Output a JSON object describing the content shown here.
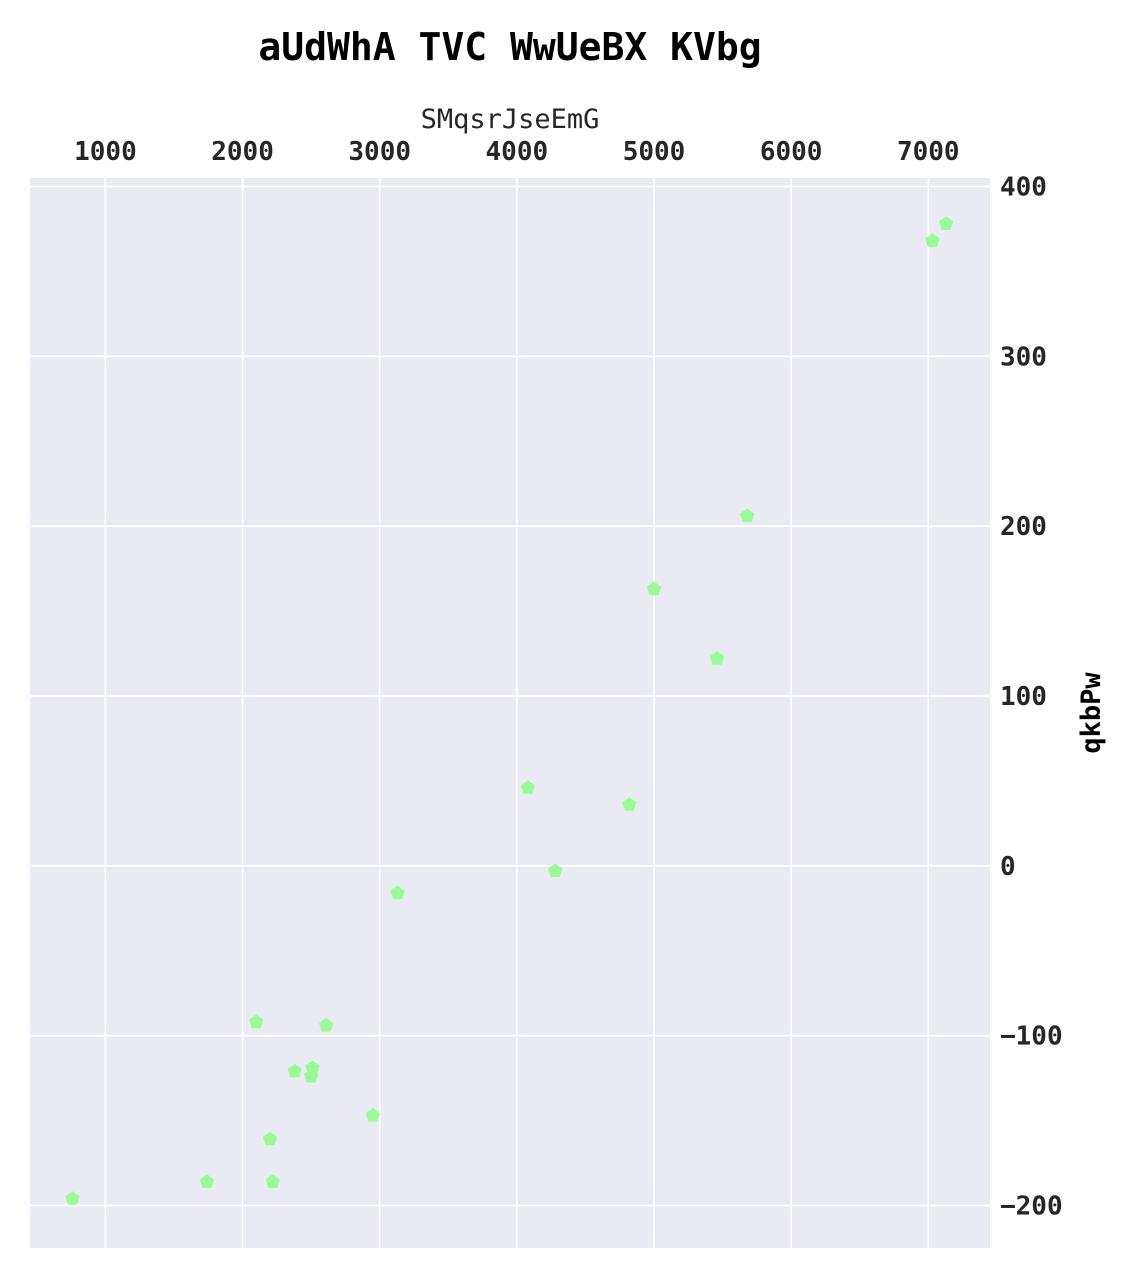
{
  "chart_data": {
    "type": "scatter",
    "title": "aUdWhA TVC WwUeBX KVbg",
    "xlabel": "SMqsrJseEmG",
    "ylabel": "qkbPw",
    "x_axis_position": "top",
    "y_axis_position": "right",
    "xlim": [
      450,
      7450
    ],
    "ylim": [
      -225,
      405
    ],
    "x_ticks": [
      1000,
      2000,
      3000,
      4000,
      5000,
      6000,
      7000
    ],
    "y_ticks": [
      -200,
      -100,
      0,
      100,
      200,
      300,
      400
    ],
    "x_tick_labels": [
      "1000",
      "2000",
      "3000",
      "4000",
      "5000",
      "6000",
      "7000"
    ],
    "y_tick_labels": [
      "−200",
      "−100",
      "0",
      "100",
      "200",
      "300",
      "400"
    ],
    "grid": true,
    "background": "#eaeaf2",
    "marker": "pentagon",
    "marker_color": "#98fb98",
    "points": [
      {
        "x": 760,
        "y": -196
      },
      {
        "x": 1740,
        "y": -186
      },
      {
        "x": 2100,
        "y": -92
      },
      {
        "x": 2200,
        "y": -161
      },
      {
        "x": 2220,
        "y": -186
      },
      {
        "x": 2380,
        "y": -121
      },
      {
        "x": 2500,
        "y": -124
      },
      {
        "x": 2510,
        "y": -119
      },
      {
        "x": 2610,
        "y": -94
      },
      {
        "x": 2950,
        "y": -147
      },
      {
        "x": 3130,
        "y": -16
      },
      {
        "x": 4080,
        "y": 46
      },
      {
        "x": 4280,
        "y": -3
      },
      {
        "x": 4820,
        "y": 36
      },
      {
        "x": 5000,
        "y": 163
      },
      {
        "x": 5460,
        "y": 122
      },
      {
        "x": 5680,
        "y": 206
      },
      {
        "x": 7030,
        "y": 368
      },
      {
        "x": 7130,
        "y": 378
      }
    ]
  }
}
